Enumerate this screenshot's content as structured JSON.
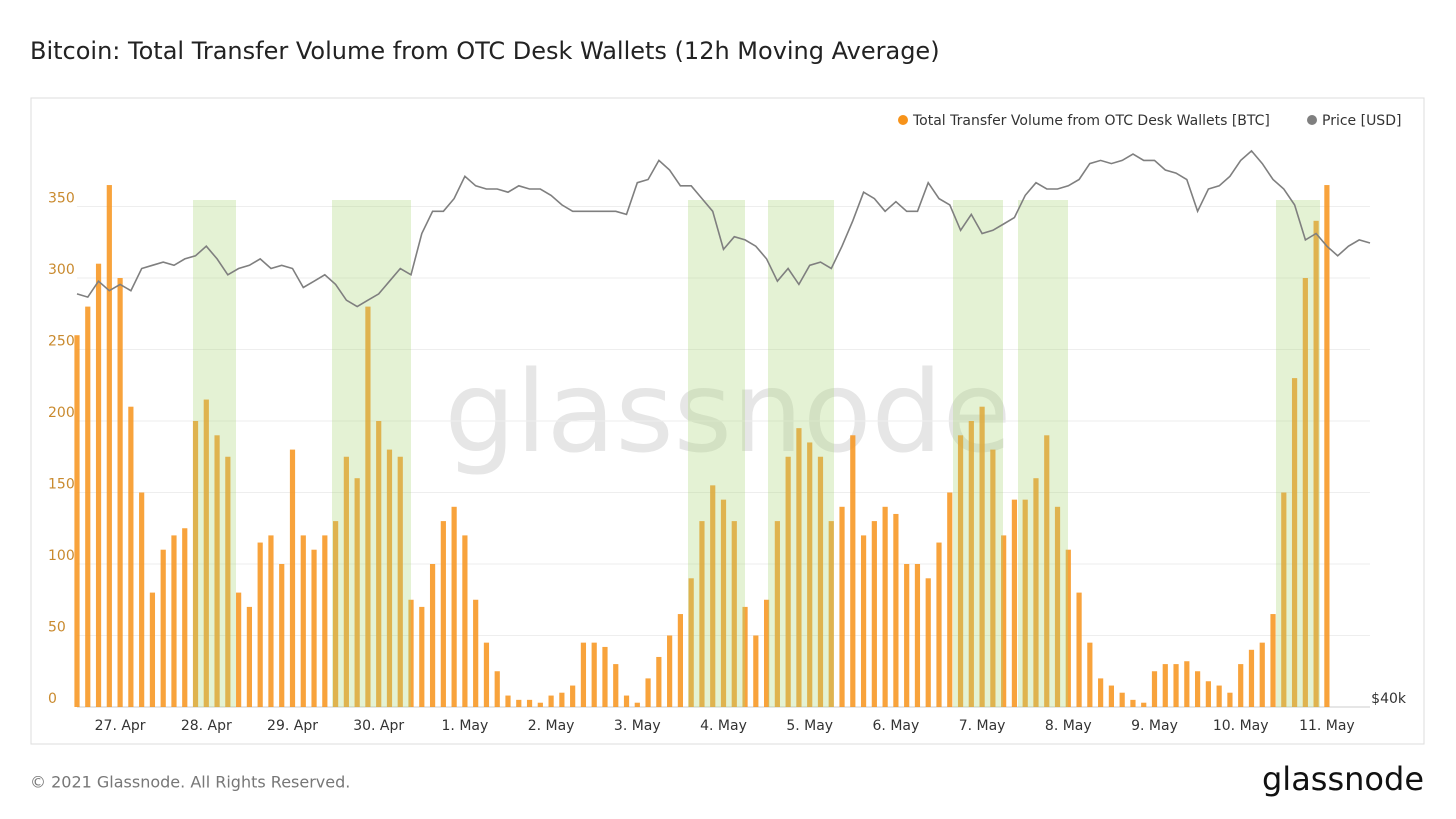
{
  "chart_data": {
    "type": "combo",
    "title": "Bitcoin: Total Transfer Volume from OTC Desk Wallets (12h Moving Average)",
    "watermark": "glassnode",
    "categories": [
      null,
      null,
      null,
      null,
      "27. Apr",
      null,
      null,
      null,
      null,
      null,
      null,
      null,
      "28. Apr",
      null,
      null,
      null,
      null,
      null,
      null,
      null,
      "29. Apr",
      null,
      null,
      null,
      null,
      null,
      null,
      null,
      "30. Apr",
      null,
      null,
      null,
      null,
      null,
      null,
      null,
      "1. May",
      null,
      null,
      null,
      null,
      null,
      null,
      null,
      "2. May",
      null,
      null,
      null,
      null,
      null,
      null,
      null,
      "3. May",
      null,
      null,
      null,
      null,
      null,
      null,
      null,
      "4. May",
      null,
      null,
      null,
      null,
      null,
      null,
      null,
      "5. May",
      null,
      null,
      null,
      null,
      null,
      null,
      null,
      "6. May",
      null,
      null,
      null,
      null,
      null,
      null,
      null,
      "7. May",
      null,
      null,
      null,
      null,
      null,
      null,
      null,
      "8. May",
      null,
      null,
      null,
      null,
      null,
      null,
      null,
      "9. May",
      null,
      null,
      null,
      null,
      null,
      null,
      null,
      "10. May",
      null,
      null,
      null,
      null,
      null,
      null,
      null,
      "11. May",
      null,
      null,
      null,
      null
    ],
    "series": [
      {
        "name": "Total Transfer Volume from OTC Desk Wallets [BTC]",
        "type": "bar",
        "color": "#f7931a",
        "values": [
          260,
          280,
          310,
          365,
          300,
          210,
          150,
          80,
          110,
          120,
          125,
          200,
          215,
          190,
          175,
          80,
          70,
          115,
          120,
          100,
          180,
          120,
          110,
          120,
          130,
          175,
          160,
          280,
          200,
          180,
          175,
          75,
          70,
          100,
          130,
          140,
          120,
          75,
          45,
          25,
          8,
          5,
          5,
          3,
          8,
          10,
          15,
          45,
          45,
          42,
          30,
          8,
          3,
          20,
          35,
          50,
          65,
          90,
          130,
          155,
          145,
          130,
          70,
          50,
          75,
          130,
          175,
          195,
          185,
          175,
          130,
          140,
          190,
          120,
          130,
          140,
          135,
          100,
          100,
          90,
          115,
          150,
          190,
          200,
          210,
          180,
          120,
          145,
          145,
          160,
          190,
          140,
          110,
          80,
          45,
          20,
          15,
          10,
          5,
          3,
          25,
          30,
          30,
          32,
          25,
          18,
          15,
          10,
          30,
          40,
          45,
          65,
          150,
          230,
          300,
          340,
          365,
          null,
          null,
          null,
          null
        ]
      },
      {
        "name": "Price [USD]",
        "type": "line",
        "color": "#7f7f7f",
        "axis": "y2",
        "values": [
          53000,
          52900,
          53400,
          53100,
          53300,
          53100,
          53800,
          53900,
          54000,
          53900,
          54100,
          54200,
          54500,
          54100,
          53600,
          53800,
          53900,
          54100,
          53800,
          53900,
          53800,
          53200,
          53400,
          53600,
          53300,
          52800,
          52600,
          52800,
          53000,
          53400,
          53800,
          53600,
          54900,
          55600,
          55600,
          56000,
          56700,
          56400,
          56300,
          56300,
          56200,
          56400,
          56300,
          56300,
          56100,
          55800,
          55600,
          55600,
          55600,
          55600,
          55600,
          55500,
          56500,
          56600,
          57200,
          56900,
          56400,
          56400,
          56000,
          55600,
          54400,
          54800,
          54700,
          54500,
          54100,
          53400,
          53800,
          53300,
          53900,
          54000,
          53800,
          54500,
          55300,
          56200,
          56000,
          55600,
          55900,
          55600,
          55600,
          56500,
          56000,
          55800,
          55000,
          55500,
          54900,
          55000,
          55200,
          55400,
          56100,
          56500,
          56300,
          56300,
          56400,
          56600,
          57100,
          57200,
          57100,
          57200,
          57400,
          57200,
          57200,
          56900,
          56800,
          56600,
          55600,
          56300,
          56400,
          56700,
          57200,
          57500,
          57100,
          56600,
          56300,
          55800,
          54700,
          54900,
          54500,
          54200,
          54500,
          54700,
          54600
        ]
      }
    ],
    "ylim": [
      0,
      400
    ],
    "yticks": [
      0,
      50,
      100,
      150,
      200,
      250,
      300,
      350
    ],
    "y2lim": [
      40000,
      58000
    ],
    "y2ticks": [
      {
        "value": 40000,
        "label": "$40k"
      }
    ],
    "grid": true,
    "legend": "top-right"
  },
  "footer": {
    "copyright": "© 2021 Glassnode. All Rights Reserved.",
    "logo": "glassnode"
  }
}
